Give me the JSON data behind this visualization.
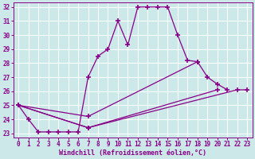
{
  "xlabel": "Windchill (Refroidissement éolien,°C)",
  "bg_color": "#cce8e8",
  "line_color": "#880088",
  "grid_color": "#ffffff",
  "xlim": [
    -0.5,
    23.5
  ],
  "ylim": [
    22.7,
    32.3
  ],
  "yticks": [
    23,
    24,
    25,
    26,
    27,
    28,
    29,
    30,
    31,
    32
  ],
  "xticks": [
    0,
    1,
    2,
    3,
    4,
    5,
    6,
    7,
    8,
    9,
    10,
    11,
    12,
    13,
    14,
    15,
    16,
    17,
    18,
    19,
    20,
    21,
    22,
    23
  ],
  "series": [
    {
      "x": [
        0,
        1,
        2,
        3,
        4,
        5,
        6,
        7,
        8,
        9,
        10,
        11,
        12,
        13,
        14,
        15,
        16,
        17,
        18
      ],
      "y": [
        25.0,
        24.0,
        23.1,
        23.1,
        23.1,
        23.1,
        23.1,
        27.0,
        28.5,
        29.0,
        31.0,
        29.3,
        32.0,
        32.0,
        32.0,
        32.0,
        30.0,
        28.2,
        28.1
      ]
    },
    {
      "x": [
        0,
        7,
        18,
        19,
        20,
        21
      ],
      "y": [
        25.0,
        24.2,
        28.1,
        27.0,
        26.5,
        26.1
      ]
    },
    {
      "x": [
        0,
        7,
        20
      ],
      "y": [
        25.0,
        23.4,
        26.1
      ]
    },
    {
      "x": [
        0,
        7,
        22,
        23
      ],
      "y": [
        25.0,
        23.4,
        26.1,
        26.1
      ]
    }
  ]
}
